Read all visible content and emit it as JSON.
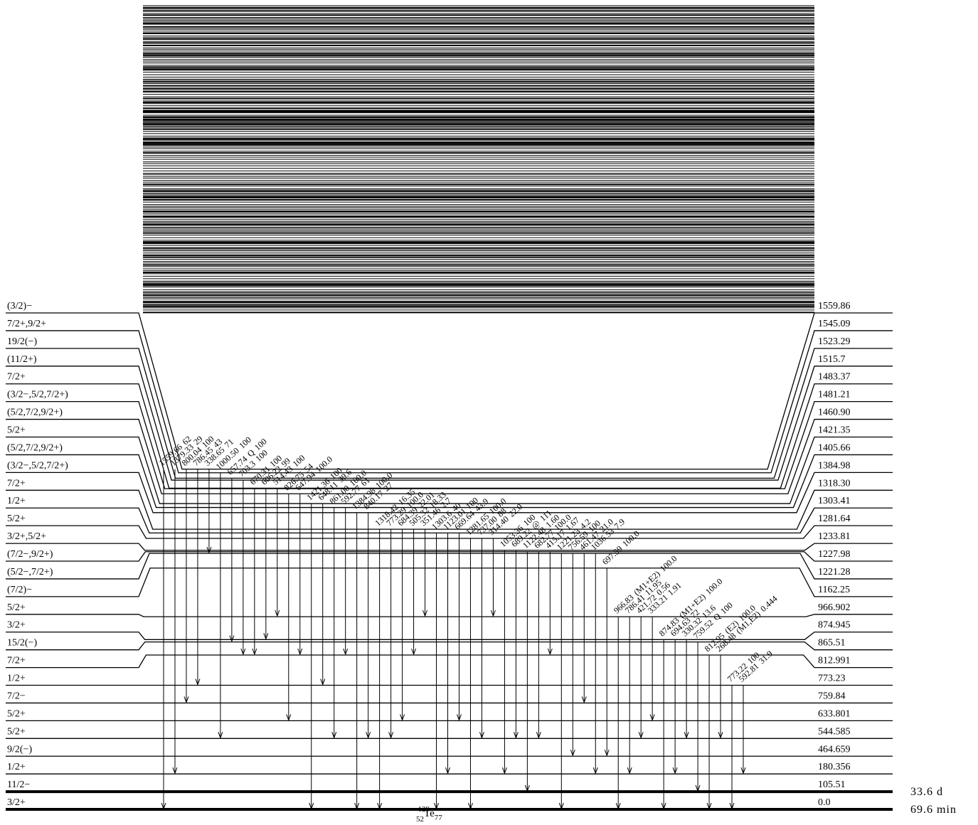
{
  "nucleus": {
    "mass": "129",
    "z": "52",
    "symbol": "Te",
    "n": "77"
  },
  "levels": [
    {
      "spin": "(3/2)−",
      "energy": "1559.86",
      "gammas": [
        {
          "energy": "1559.66",
          "intensity": "62"
        },
        {
          "energy": "1379.33",
          "intensity": "29"
        },
        {
          "energy": "800.04",
          "intensity": "100"
        },
        {
          "energy": "786.45",
          "intensity": "43"
        },
        {
          "energy": "338.65",
          "intensity": "71"
        }
      ]
    },
    {
      "spin": "7/2+,9/2+",
      "energy": "1545.09",
      "gammas": [
        {
          "energy": "1000.50",
          "intensity": "100"
        }
      ]
    },
    {
      "spin": "19/2(−)",
      "energy": "1523.29",
      "gammas": [
        {
          "energy": "657.74",
          "mult": "Q",
          "intensity": "100"
        }
      ]
    },
    {
      "spin": "(11/2+)",
      "energy": "1515.7",
      "gammas": [
        {
          "energy": "703.3",
          "intensity": "100"
        }
      ]
    },
    {
      "spin": "7/2+",
      "energy": "1483.37",
      "gammas": [
        {
          "energy": "670.31",
          "intensity": "100"
        },
        {
          "energy": "606.22",
          "intensity": "99"
        },
        {
          "energy": "514.43",
          "intensity": "100"
        }
      ]
    },
    {
      "spin": "(3/2−,5/2,7/2+)",
      "energy": "1481.21",
      "gammas": []
    },
    {
      "spin": "(5/2,7/2,9/2+)",
      "energy": "1460.90",
      "gammas": [
        {
          "energy": "826.75",
          "intensity": "54"
        },
        {
          "energy": "647.94",
          "intensity": "100.0"
        }
      ]
    },
    {
      "spin": "5/2+",
      "energy": "1421.35",
      "gammas": [
        {
          "energy": "1421.36",
          "intensity": "100"
        },
        {
          "energy": "648.11",
          "intensity": "39.6"
        }
      ]
    },
    {
      "spin": "(5/2,7/2,9/2+)",
      "energy": "1405.66",
      "gammas": [
        {
          "energy": "861.00",
          "intensity": "100.0"
        },
        {
          "energy": "592.77",
          "intensity": "61"
        }
      ]
    },
    {
      "spin": "(3/2−,5/2,7/2+)",
      "energy": "1384.98",
      "gammas": [
        {
          "energy": "1384.98",
          "intensity": "100.0"
        },
        {
          "energy": "840.17",
          "intensity": "27"
        }
      ]
    },
    {
      "spin": "7/2+",
      "energy": "1318.30",
      "gammas": [
        {
          "energy": "1318.42",
          "intensity": "16.35"
        },
        {
          "energy": "773.29",
          "intensity": "100.0"
        },
        {
          "energy": "684.39",
          "intensity": "22.01"
        },
        {
          "energy": "505.32",
          "intensity": "18.33"
        },
        {
          "energy": "351.46",
          "intensity": "2.7"
        }
      ]
    },
    {
      "spin": "1/2+",
      "energy": "1303.41",
      "gammas": [
        {
          "energy": "1303.6",
          "intensity": "40"
        },
        {
          "energy": "1123.01",
          "intensity": "100"
        },
        {
          "energy": "669.64",
          "intensity": "43.9"
        }
      ]
    },
    {
      "spin": "5/2+",
      "energy": "1281.64",
      "gammas": [
        {
          "energy": "1281.65",
          "intensity": "100.0"
        },
        {
          "energy": "737.00",
          "intensity": "88"
        },
        {
          "energy": "314.40",
          "intensity": "22.0"
        }
      ]
    },
    {
      "spin": "3/2+,5/2+",
      "energy": "1233.81",
      "gammas": [
        {
          "energy": "1053.36",
          "intensity": "100"
        },
        {
          "energy": "689.22",
          "mult": "@",
          "intensity": "111"
        }
      ]
    },
    {
      "spin": "(7/2−,9/2+)",
      "energy": "1227.98",
      "gammas": [
        {
          "energy": "1122.48",
          "intensity": "1.60"
        },
        {
          "energy": "682.77",
          "intensity": "100.0"
        },
        {
          "energy": "415.17",
          "intensity": "1.67"
        }
      ]
    },
    {
      "spin": "(5/2−,7/2+)",
      "energy": "1221.28",
      "gammas": [
        {
          "energy": "1221.23",
          "intensity": "4.2"
        },
        {
          "energy": "756.59",
          "intensity": "100"
        },
        {
          "energy": "461.47",
          "intensity": "21.0"
        },
        {
          "energy": "1036.53",
          "intensity": "7.9"
        }
      ]
    },
    {
      "spin": "(7/2)−",
      "energy": "1162.25",
      "gammas": [
        {
          "energy": "697.59",
          "intensity": "100.0"
        }
      ]
    },
    {
      "spin": "5/2+",
      "energy": "966.902",
      "gammas": [
        {
          "energy": "966.83",
          "mult": "(M1+E2)",
          "intensity": "100.0"
        },
        {
          "energy": "786.41",
          "intensity": "11.95"
        },
        {
          "energy": "421.72",
          "intensity": "0.56"
        },
        {
          "energy": "333.21",
          "intensity": "1.91"
        }
      ]
    },
    {
      "spin": "3/2+",
      "energy": "874.945",
      "gammas": [
        {
          "energy": "874.83",
          "mult": "(M1+E2)",
          "intensity": "100.0"
        },
        {
          "energy": "694.63",
          "intensity": "72"
        },
        {
          "energy": "330.32",
          "intensity": "13.6"
        }
      ]
    },
    {
      "spin": "15/2(−)",
      "energy": "865.51",
      "gammas": [
        {
          "energy": "759.52",
          "mult": "Q",
          "intensity": "100"
        }
      ]
    },
    {
      "spin": "7/2+",
      "energy": "812.991",
      "gammas": [
        {
          "energy": "812.95",
          "mult": "(E2)",
          "intensity": "100.0"
        },
        {
          "energy": "268.48",
          "mult": "(M1,E2)",
          "intensity": "0.444"
        }
      ]
    },
    {
      "spin": "1/2+",
      "energy": "773.23",
      "gammas": [
        {
          "energy": "773.22",
          "intensity": "100"
        },
        {
          "energy": "592.81",
          "intensity": "31.9"
        }
      ]
    },
    {
      "spin": "7/2−",
      "energy": "759.84",
      "gammas": []
    },
    {
      "spin": "5/2+",
      "energy": "633.801",
      "gammas": []
    },
    {
      "spin": "5/2+",
      "energy": "544.585",
      "gammas": []
    },
    {
      "spin": "9/2(−)",
      "energy": "464.659",
      "gammas": []
    },
    {
      "spin": "1/2+",
      "energy": "180.356",
      "gammas": []
    },
    {
      "spin": "11/2−",
      "energy": "105.51",
      "half_life": "33.6 d",
      "gammas": []
    },
    {
      "spin": "3/2+",
      "energy": "0.0",
      "half_life": "69.6 min",
      "gammas": []
    }
  ]
}
